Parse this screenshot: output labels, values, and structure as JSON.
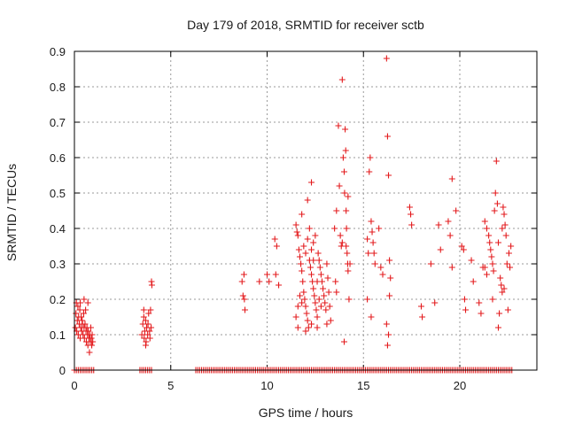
{
  "chart_data": {
    "type": "scatter",
    "title": "Day 179 of 2018, SRMTID for receiver sctb",
    "xlabel": "GPS time / hours",
    "ylabel": "SRMTID / TECUs",
    "xlim": [
      0,
      24
    ],
    "ylim": [
      0,
      0.9
    ],
    "x_ticks": [
      0,
      5,
      10,
      15,
      20
    ],
    "x_tick_labels": [
      "0",
      "5",
      "10",
      "15",
      "20"
    ],
    "y_ticks": [
      0,
      0.1,
      0.2,
      0.3,
      0.4,
      0.5,
      0.6,
      0.7,
      0.8,
      0.9
    ],
    "y_tick_labels": [
      "0",
      "0.1",
      "0.2",
      "0.3",
      "0.4",
      "0.5",
      "0.6",
      "0.7",
      "0.8",
      "0.9"
    ],
    "grid": true,
    "marker": "+",
    "series": [
      {
        "name": "SRMTID",
        "color": "#e31a1c",
        "points": [
          [
            0.05,
            0.12
          ],
          [
            0.08,
            0.16
          ],
          [
            0.1,
            0.19
          ],
          [
            0.12,
            0.11
          ],
          [
            0.15,
            0.14
          ],
          [
            0.18,
            0.18
          ],
          [
            0.2,
            0.1
          ],
          [
            0.22,
            0.15
          ],
          [
            0.25,
            0.13
          ],
          [
            0.28,
            0.17
          ],
          [
            0.3,
            0.09
          ],
          [
            0.33,
            0.12
          ],
          [
            0.35,
            0.15
          ],
          [
            0.38,
            0.11
          ],
          [
            0.4,
            0.14
          ],
          [
            0.42,
            0.13
          ],
          [
            0.45,
            0.1
          ],
          [
            0.48,
            0.16
          ],
          [
            0.5,
            0.12
          ],
          [
            0.52,
            0.09
          ],
          [
            0.55,
            0.13
          ],
          [
            0.58,
            0.17
          ],
          [
            0.6,
            0.11
          ],
          [
            0.62,
            0.08
          ],
          [
            0.65,
            0.12
          ],
          [
            0.68,
            0.1
          ],
          [
            0.7,
            0.07
          ],
          [
            0.72,
            0.11
          ],
          [
            0.75,
            0.09
          ],
          [
            0.78,
            0.05
          ],
          [
            0.8,
            0.1
          ],
          [
            0.82,
            0.08
          ],
          [
            0.85,
            0.12
          ],
          [
            0.88,
            0.09
          ],
          [
            0.9,
            0.07
          ],
          [
            0.92,
            0.1
          ],
          [
            0.95,
            0.08
          ],
          [
            0.3,
            0.19
          ],
          [
            0.5,
            0.2
          ],
          [
            0.7,
            0.19
          ],
          [
            3.5,
            0.1
          ],
          [
            3.55,
            0.13
          ],
          [
            3.6,
            0.15
          ],
          [
            3.62,
            0.09
          ],
          [
            3.65,
            0.11
          ],
          [
            3.7,
            0.14
          ],
          [
            3.72,
            0.08
          ],
          [
            3.75,
            0.12
          ],
          [
            3.8,
            0.1
          ],
          [
            3.82,
            0.13
          ],
          [
            3.85,
            0.16
          ],
          [
            3.9,
            0.11
          ],
          [
            3.92,
            0.09
          ],
          [
            3.95,
            0.17
          ],
          [
            3.98,
            0.12
          ],
          [
            4.0,
            0.25
          ],
          [
            4.02,
            0.24
          ],
          [
            3.6,
            0.17
          ],
          [
            3.7,
            0.07
          ],
          [
            8.7,
            0.25
          ],
          [
            8.75,
            0.21
          ],
          [
            8.8,
            0.27
          ],
          [
            8.82,
            0.2
          ],
          [
            8.85,
            0.17
          ],
          [
            9.6,
            0.25
          ],
          [
            10.0,
            0.27
          ],
          [
            10.1,
            0.25
          ],
          [
            10.4,
            0.37
          ],
          [
            10.5,
            0.35
          ],
          [
            10.45,
            0.27
          ],
          [
            10.6,
            0.24
          ],
          [
            11.5,
            0.41
          ],
          [
            11.55,
            0.39
          ],
          [
            11.6,
            0.38
          ],
          [
            11.65,
            0.34
          ],
          [
            11.7,
            0.32
          ],
          [
            11.75,
            0.3
          ],
          [
            11.8,
            0.28
          ],
          [
            11.85,
            0.25
          ],
          [
            11.9,
            0.22
          ],
          [
            11.95,
            0.2
          ],
          [
            12.0,
            0.18
          ],
          [
            12.05,
            0.16
          ],
          [
            12.1,
            0.14
          ],
          [
            12.15,
            0.12
          ],
          [
            12.2,
            0.31
          ],
          [
            12.25,
            0.29
          ],
          [
            12.3,
            0.27
          ],
          [
            12.35,
            0.25
          ],
          [
            12.4,
            0.23
          ],
          [
            12.45,
            0.21
          ],
          [
            12.5,
            0.19
          ],
          [
            12.55,
            0.17
          ],
          [
            12.6,
            0.15
          ],
          [
            12.65,
            0.33
          ],
          [
            12.7,
            0.31
          ],
          [
            12.75,
            0.29
          ],
          [
            12.8,
            0.27
          ],
          [
            12.85,
            0.25
          ],
          [
            12.9,
            0.23
          ],
          [
            12.95,
            0.21
          ],
          [
            13.0,
            0.19
          ],
          [
            13.05,
            0.17
          ],
          [
            13.1,
            0.3
          ],
          [
            13.15,
            0.26
          ],
          [
            13.2,
            0.22
          ],
          [
            13.25,
            0.18
          ],
          [
            13.3,
            0.14
          ],
          [
            11.6,
            0.18
          ],
          [
            11.7,
            0.21
          ],
          [
            11.8,
            0.19
          ],
          [
            11.9,
            0.35
          ],
          [
            12.0,
            0.33
          ],
          [
            12.1,
            0.37
          ],
          [
            12.2,
            0.4
          ],
          [
            12.3,
            0.34
          ],
          [
            12.4,
            0.36
          ],
          [
            12.5,
            0.38
          ],
          [
            12.6,
            0.25
          ],
          [
            12.7,
            0.2
          ],
          [
            12.8,
            0.18
          ],
          [
            11.5,
            0.15
          ],
          [
            11.6,
            0.12
          ],
          [
            12.0,
            0.11
          ],
          [
            12.3,
            0.13
          ],
          [
            12.6,
            0.12
          ],
          [
            13.1,
            0.13
          ],
          [
            12.3,
            0.53
          ],
          [
            12.1,
            0.48
          ],
          [
            11.8,
            0.44
          ],
          [
            12.4,
            0.31
          ],
          [
            13.5,
            0.4
          ],
          [
            13.6,
            0.45
          ],
          [
            13.7,
            0.69
          ],
          [
            13.75,
            0.52
          ],
          [
            13.8,
            0.38
          ],
          [
            13.85,
            0.35
          ],
          [
            13.9,
            0.82
          ],
          [
            13.95,
            0.6
          ],
          [
            14.0,
            0.56
          ],
          [
            14.02,
            0.5
          ],
          [
            14.05,
            0.68
          ],
          [
            14.08,
            0.62
          ],
          [
            14.1,
            0.45
          ],
          [
            14.12,
            0.4
          ],
          [
            14.15,
            0.33
          ],
          [
            14.18,
            0.3
          ],
          [
            14.2,
            0.28
          ],
          [
            14.25,
            0.2
          ],
          [
            13.55,
            0.25
          ],
          [
            13.6,
            0.22
          ],
          [
            14.0,
            0.08
          ],
          [
            13.9,
            0.36
          ],
          [
            14.1,
            0.35
          ],
          [
            14.2,
            0.49
          ],
          [
            14.3,
            0.3
          ],
          [
            15.2,
            0.37
          ],
          [
            15.25,
            0.33
          ],
          [
            15.3,
            0.56
          ],
          [
            15.35,
            0.6
          ],
          [
            15.4,
            0.42
          ],
          [
            15.45,
            0.39
          ],
          [
            15.5,
            0.36
          ],
          [
            15.55,
            0.33
          ],
          [
            15.6,
            0.3
          ],
          [
            15.4,
            0.15
          ],
          [
            15.2,
            0.2
          ],
          [
            15.8,
            0.4
          ],
          [
            15.9,
            0.29
          ],
          [
            16.0,
            0.27
          ],
          [
            16.2,
            0.88
          ],
          [
            16.25,
            0.66
          ],
          [
            16.3,
            0.55
          ],
          [
            16.35,
            0.31
          ],
          [
            16.2,
            0.13
          ],
          [
            16.3,
            0.1
          ],
          [
            16.25,
            0.07
          ],
          [
            16.4,
            0.26
          ],
          [
            16.35,
            0.21
          ],
          [
            17.4,
            0.46
          ],
          [
            17.45,
            0.44
          ],
          [
            17.5,
            0.41
          ],
          [
            18.0,
            0.18
          ],
          [
            18.05,
            0.15
          ],
          [
            18.5,
            0.3
          ],
          [
            18.7,
            0.19
          ],
          [
            18.9,
            0.41
          ],
          [
            19.0,
            0.34
          ],
          [
            19.4,
            0.42
          ],
          [
            19.5,
            0.38
          ],
          [
            19.6,
            0.54
          ],
          [
            19.6,
            0.29
          ],
          [
            19.8,
            0.45
          ],
          [
            20.1,
            0.35
          ],
          [
            20.2,
            0.34
          ],
          [
            20.25,
            0.2
          ],
          [
            20.3,
            0.17
          ],
          [
            20.6,
            0.31
          ],
          [
            20.7,
            0.25
          ],
          [
            21.0,
            0.19
          ],
          [
            21.1,
            0.16
          ],
          [
            21.3,
            0.42
          ],
          [
            21.4,
            0.4
          ],
          [
            21.5,
            0.38
          ],
          [
            21.55,
            0.36
          ],
          [
            21.6,
            0.34
          ],
          [
            21.65,
            0.32
          ],
          [
            21.7,
            0.3
          ],
          [
            21.75,
            0.28
          ],
          [
            21.8,
            0.45
          ],
          [
            21.85,
            0.5
          ],
          [
            21.9,
            0.59
          ],
          [
            21.95,
            0.47
          ],
          [
            22.0,
            0.12
          ],
          [
            22.05,
            0.16
          ],
          [
            22.1,
            0.26
          ],
          [
            22.15,
            0.24
          ],
          [
            22.2,
            0.22
          ],
          [
            22.25,
            0.46
          ],
          [
            22.3,
            0.44
          ],
          [
            22.35,
            0.41
          ],
          [
            22.4,
            0.38
          ],
          [
            22.45,
            0.3
          ],
          [
            22.5,
            0.17
          ],
          [
            22.55,
            0.33
          ],
          [
            22.6,
            0.29
          ],
          [
            22.65,
            0.35
          ],
          [
            21.3,
            0.29
          ],
          [
            21.4,
            0.27
          ],
          [
            21.2,
            0.29
          ],
          [
            21.7,
            0.2
          ],
          [
            22.0,
            0.36
          ],
          [
            22.3,
            0.23
          ],
          [
            22.2,
            0.4
          ]
        ],
        "zero_line_ranges": [
          [
            0.0,
            1.0
          ],
          [
            3.4,
            4.0
          ],
          [
            6.3,
            22.7
          ]
        ]
      }
    ]
  }
}
